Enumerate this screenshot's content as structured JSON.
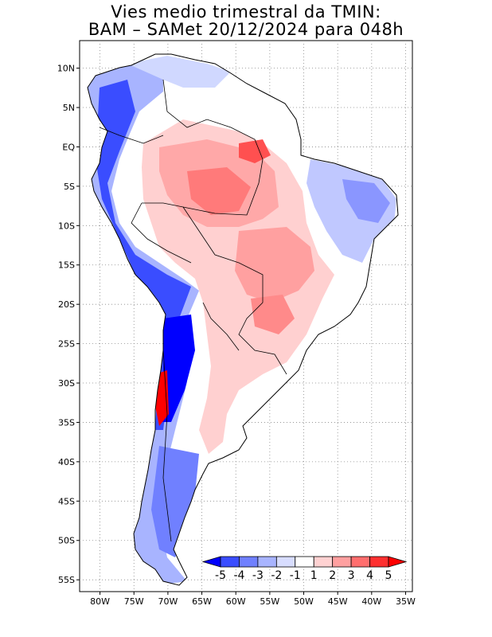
{
  "title": {
    "line1": "Vies medio trimestral da TMIN:",
    "line2": "BAM – SAMet 20/12/2024  para 048h"
  },
  "axes": {
    "lat_labels": [
      "10N",
      "5N",
      "EQ",
      "5S",
      "10S",
      "15S",
      "20S",
      "25S",
      "30S",
      "35S",
      "40S",
      "45S",
      "50S",
      "55S"
    ],
    "lat_values": [
      10,
      5,
      0,
      -5,
      -10,
      -15,
      -20,
      -25,
      -30,
      -35,
      -40,
      -45,
      -50,
      -55
    ],
    "lon_labels": [
      "80W",
      "75W",
      "70W",
      "65W",
      "60W",
      "55W",
      "50W",
      "45W",
      "40W",
      "35W"
    ],
    "lon_values": [
      -80,
      -75,
      -70,
      -65,
      -60,
      -55,
      -50,
      -45,
      -40,
      -35
    ],
    "lon_range": [
      -83,
      -34
    ],
    "lat_range": [
      -56.5,
      13.5
    ],
    "grid": "dotted"
  },
  "colorbar": {
    "labels": [
      "-5",
      "-4",
      "-3",
      "-2",
      "-1",
      "1",
      "2",
      "3",
      "4",
      "5"
    ],
    "colors": [
      "#0000ff",
      "#3a4dff",
      "#7080ff",
      "#a8b4ff",
      "#d8ddff",
      "#ffffff",
      "#ffd2d2",
      "#ffa0a0",
      "#ff6e6e",
      "#ff3030",
      "#ff0000"
    ]
  },
  "colors": {
    "strong_negative": "#0000ff",
    "moderate_negative": "#8090ff",
    "weak_negative": "#d0d8ff",
    "neutral": "#ffffff",
    "weak_positive": "#ffd0d0",
    "moderate_positive": "#ffa0a0",
    "strong_positive": "#ff5050"
  }
}
